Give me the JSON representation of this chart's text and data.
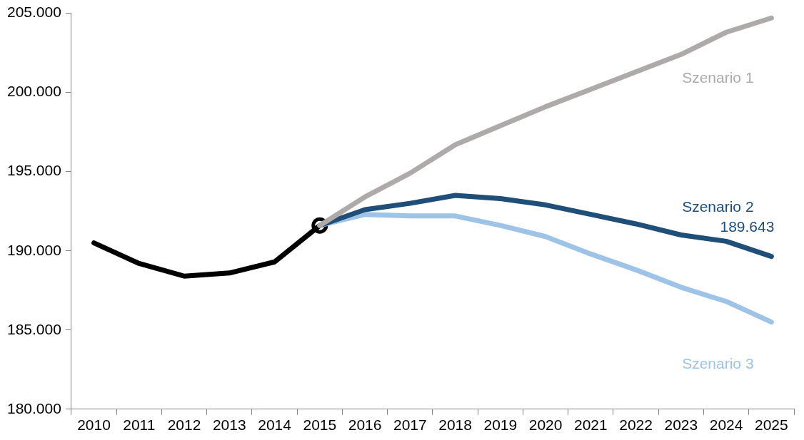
{
  "chart_data": {
    "type": "line",
    "categories": [
      "2010",
      "2011",
      "2012",
      "2013",
      "2014",
      "2015",
      "2016",
      "2017",
      "2018",
      "2019",
      "2020",
      "2021",
      "2022",
      "2023",
      "2024",
      "2025"
    ],
    "ylim": [
      180000,
      205000
    ],
    "yticks": [
      {
        "value": 180000,
        "label": "180.000"
      },
      {
        "value": 185000,
        "label": "185.000"
      },
      {
        "value": 190000,
        "label": "190.000"
      },
      {
        "value": 195000,
        "label": "195.000"
      },
      {
        "value": 200000,
        "label": "200.000"
      },
      {
        "value": 205000,
        "label": "205.000"
      }
    ],
    "grid": false,
    "legend": false,
    "marker": "none",
    "line_style": "solid",
    "series": [
      {
        "name": "Szenario 1",
        "color": "#aeaaaa",
        "values": [
          null,
          null,
          null,
          null,
          null,
          191600,
          193400,
          194900,
          196700,
          197900,
          199100,
          200200,
          201300,
          202400,
          203800,
          204700
        ]
      },
      {
        "name": "Szenario 2",
        "color": "#1f4e79",
        "values": [
          null,
          null,
          null,
          null,
          null,
          191600,
          192600,
          193000,
          193500,
          193300,
          192900,
          192300,
          191700,
          191000,
          190600,
          189643
        ],
        "value_labels": [
          null,
          null,
          null,
          null,
          null,
          null,
          null,
          null,
          null,
          null,
          null,
          null,
          null,
          null,
          null,
          "189.643"
        ]
      },
      {
        "name": "Szenario 3",
        "color": "#9dc3e6",
        "values": [
          null,
          null,
          null,
          null,
          null,
          191600,
          192300,
          192200,
          192200,
          191600,
          190900,
          189800,
          188800,
          187700,
          186800,
          185500
        ]
      },
      {
        "color": "#000000",
        "values": [
          190500,
          189200,
          188400,
          188600,
          189300,
          191600,
          null,
          null,
          null,
          null,
          null,
          null,
          null,
          null,
          null,
          null
        ]
      },
      {
        "type": "scatter",
        "color": "#000000",
        "marker": "circle",
        "values": [
          null,
          null,
          null,
          null,
          null,
          191600,
          null,
          null,
          null,
          null,
          null,
          null,
          null,
          null,
          null,
          null
        ]
      }
    ]
  }
}
